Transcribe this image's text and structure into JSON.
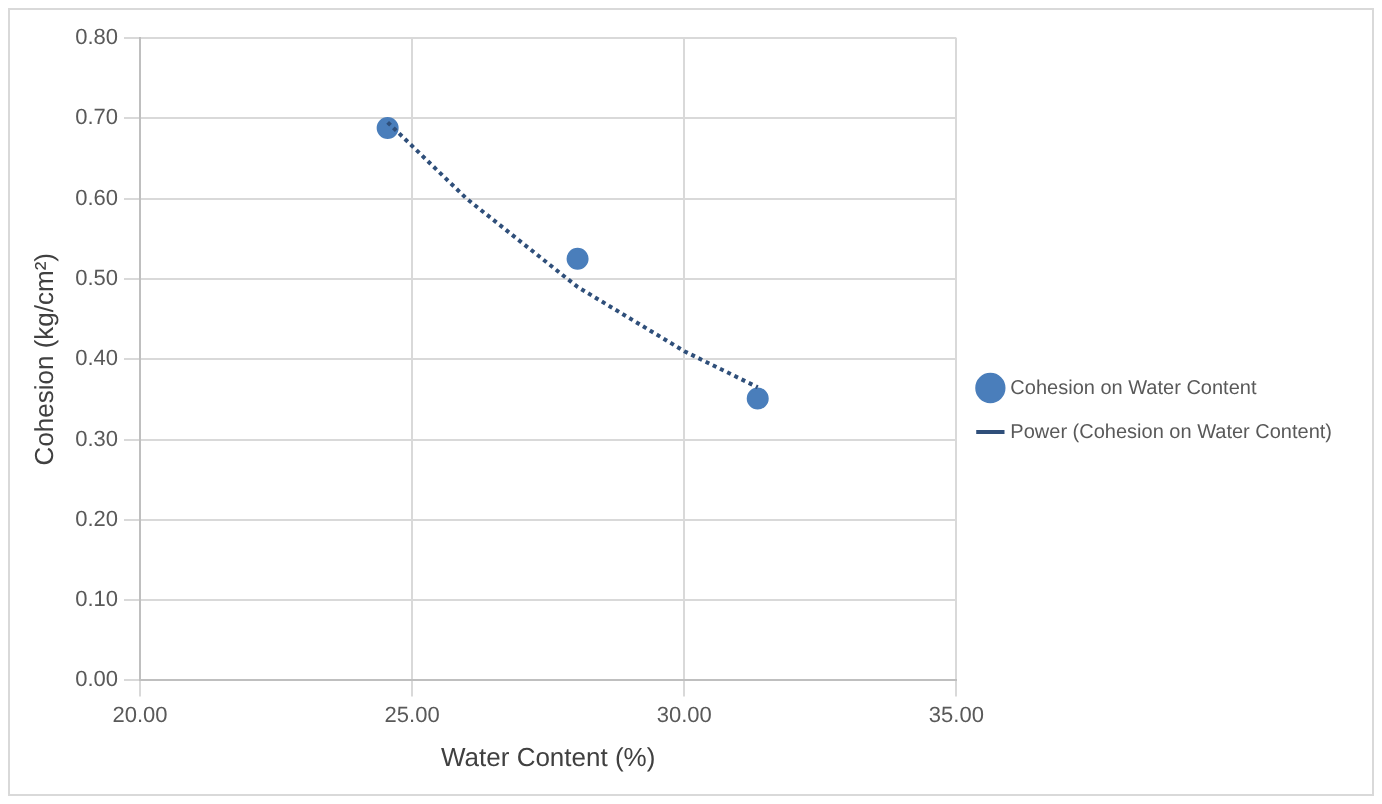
{
  "chart_data": {
    "type": "scatter",
    "xlabel": "Water Content (%)",
    "ylabel": "Cohesion (kg/cm²)",
    "xlim": [
      20,
      35
    ],
    "xticks": [
      {
        "value": 20,
        "label": "20.00"
      },
      {
        "value": 25,
        "label": "25.00"
      },
      {
        "value": 30,
        "label": "30.00"
      },
      {
        "value": 35,
        "label": "35.00"
      }
    ],
    "ylim": [
      0,
      0.8
    ],
    "yticks": [
      {
        "value": 0,
        "label": "0.00"
      },
      {
        "value": 0.1,
        "label": "0.10"
      },
      {
        "value": 0.2,
        "label": "0.20"
      },
      {
        "value": 0.3,
        "label": "0.30"
      },
      {
        "value": 0.4,
        "label": "0.40"
      },
      {
        "value": 0.5,
        "label": "0.50"
      },
      {
        "value": 0.6,
        "label": "0.60"
      },
      {
        "value": 0.7,
        "label": "0.70"
      },
      {
        "value": 0.8,
        "label": "0.80"
      }
    ],
    "grid": true,
    "legend": "right",
    "marker": "circle",
    "series": [
      {
        "name": "Cohesion on Water Content",
        "color": "#4a7ebb",
        "x": [
          24.55,
          28.04,
          31.35
        ],
        "values": [
          0.688,
          0.525,
          0.351
        ]
      },
      {
        "name": "Power (Cohesion on Water Content)",
        "type": "line",
        "line_style": "dotted",
        "marker": "none",
        "color": "#2f4f7a",
        "x": [
          24.55,
          26,
          28.04,
          30,
          31.35
        ],
        "values": [
          0.695,
          0.6,
          0.49,
          0.41,
          0.365
        ]
      }
    ]
  }
}
